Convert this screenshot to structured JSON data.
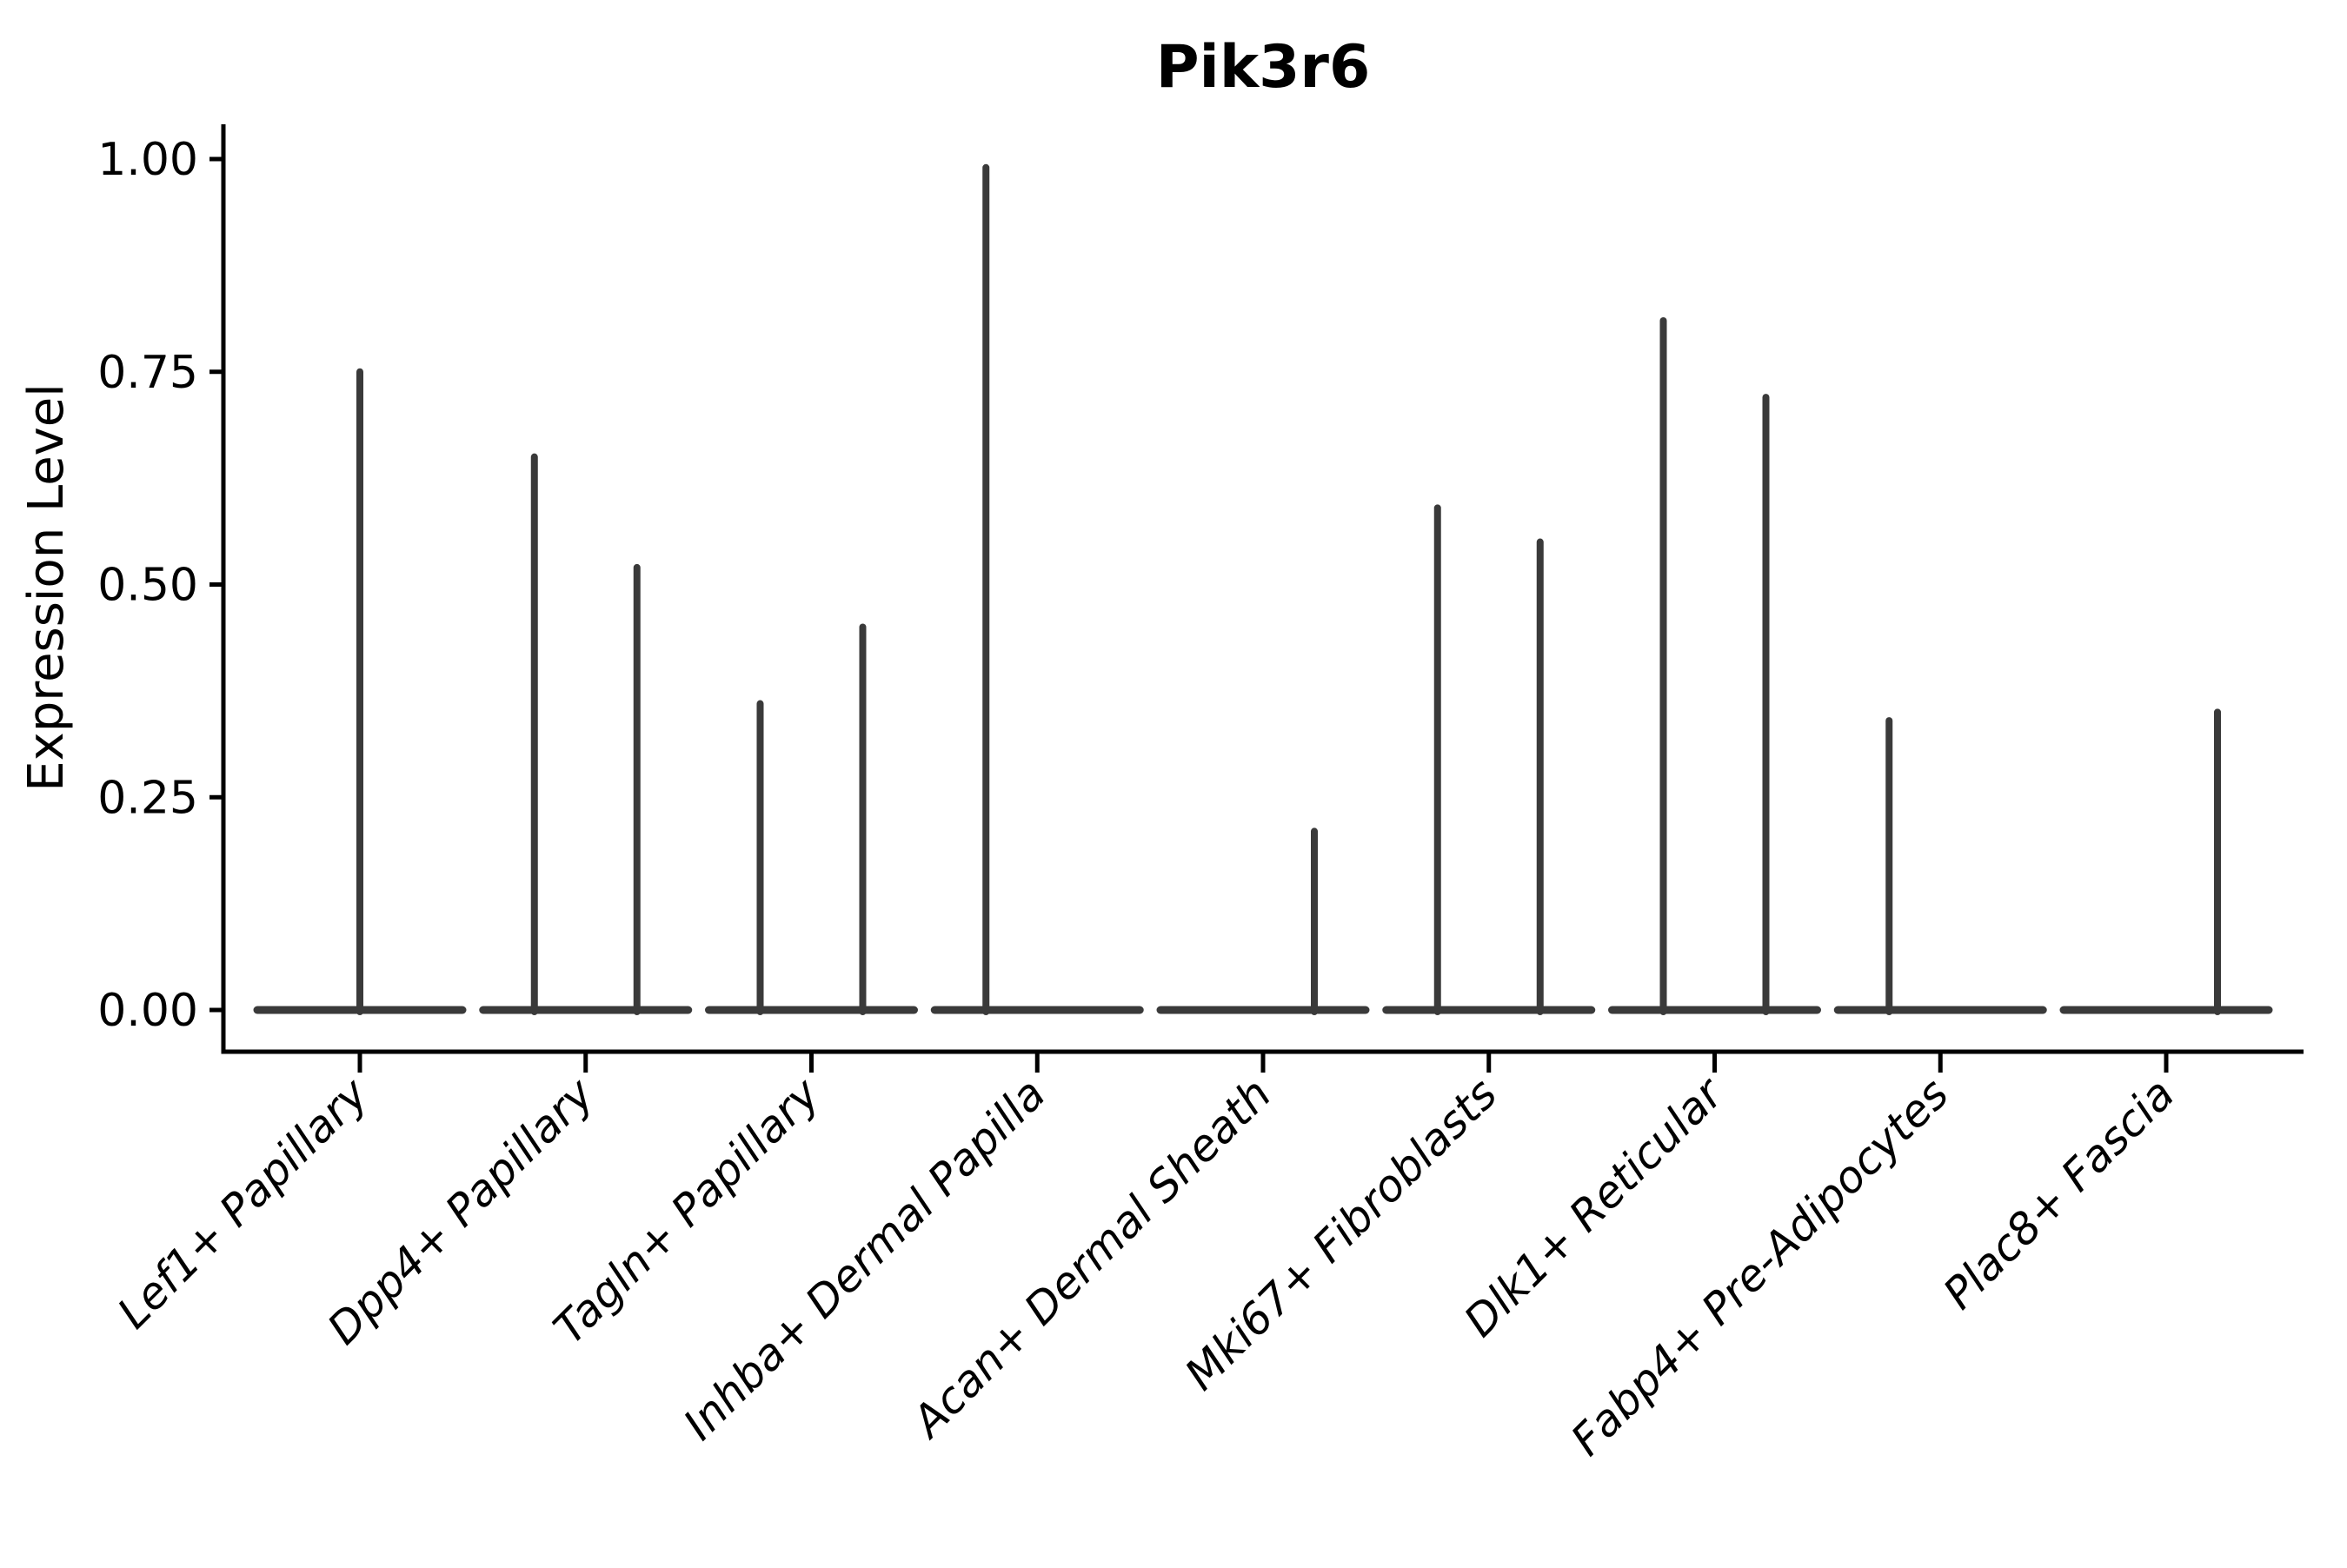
{
  "figure": {
    "background_color": "#ffffff",
    "text_color": "#000000",
    "violin_line_color": "#3a3a3a",
    "axis_color": "#000000"
  },
  "chart_data": {
    "type": "violin",
    "title": "Pik3r6",
    "xlabel": "",
    "ylabel": "Expression Level",
    "ylim": [
      0.0,
      1.0
    ],
    "y_ticks": [
      0.0,
      0.25,
      0.5,
      0.75,
      1.0
    ],
    "y_tick_labels": [
      "0.00",
      "0.25",
      "0.50",
      "0.75",
      "1.00"
    ],
    "grid": false,
    "legend": null,
    "categories": [
      "Lef1+ Papillary",
      "Dpp4+ Papillary",
      "Tagln+ Papillary",
      "Inhba+ Dermal Papilla",
      "Acan+ Dermal Sheath",
      "Mki67+ Fibroblasts",
      "Dlk1+ Reticular",
      "Fabp4+ Pre-Adipocytes",
      "Plac8+ Fascia"
    ],
    "violins": [
      {
        "category": "Lef1+ Papillary",
        "spikes": [
          {
            "position": "center",
            "max": 0.75
          }
        ]
      },
      {
        "category": "Dpp4+ Papillary",
        "spikes": [
          {
            "position": "left",
            "max": 0.65
          },
          {
            "position": "right",
            "max": 0.52
          }
        ]
      },
      {
        "category": "Tagln+ Papillary",
        "spikes": [
          {
            "position": "left",
            "max": 0.36
          },
          {
            "position": "right",
            "max": 0.45
          }
        ]
      },
      {
        "category": "Inhba+ Dermal Papilla",
        "spikes": [
          {
            "position": "left",
            "max": 0.99
          },
          {
            "position": "right",
            "max": 0.0
          }
        ]
      },
      {
        "category": "Acan+ Dermal Sheath",
        "spikes": [
          {
            "position": "left",
            "max": 0.0
          },
          {
            "position": "right",
            "max": 0.21
          }
        ]
      },
      {
        "category": "Mki67+ Fibroblasts",
        "spikes": [
          {
            "position": "left",
            "max": 0.59
          },
          {
            "position": "right",
            "max": 0.55
          }
        ]
      },
      {
        "category": "Dlk1+ Reticular",
        "spikes": [
          {
            "position": "left",
            "max": 0.81
          },
          {
            "position": "right",
            "max": 0.72
          }
        ]
      },
      {
        "category": "Fabp4+ Pre-Adipocytes",
        "spikes": [
          {
            "position": "left",
            "max": 0.34
          },
          {
            "position": "right",
            "max": 0.0
          }
        ]
      },
      {
        "category": "Plac8+ Fascia",
        "spikes": [
          {
            "position": "left",
            "max": 0.0
          },
          {
            "position": "right",
            "max": 0.35
          }
        ]
      }
    ]
  }
}
